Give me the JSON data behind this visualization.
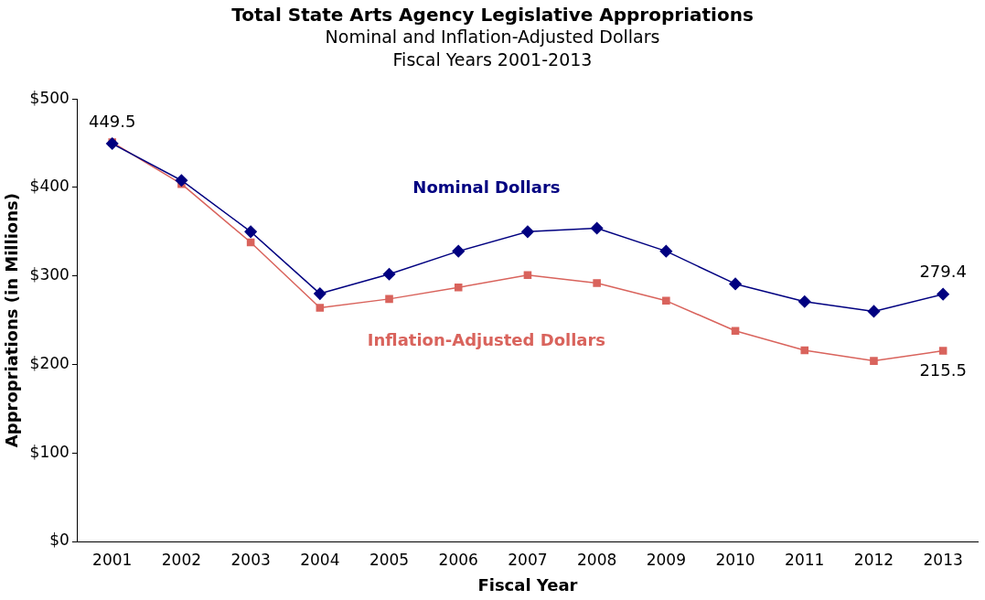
{
  "chart_data": {
    "type": "line",
    "title": "Total State Arts Agency Legislative Appropriations",
    "subtitle": "Nominal and Inflation-Adjusted Dollars\nFiscal Years 2001-2013",
    "xlabel": "Fiscal Year",
    "ylabel": "Appropriations (in Millions)",
    "categories": [
      "2001",
      "2002",
      "2003",
      "2004",
      "2005",
      "2006",
      "2007",
      "2008",
      "2009",
      "2010",
      "2011",
      "2012",
      "2013"
    ],
    "series": [
      {
        "name": "Nominal Dollars",
        "color": "#000080",
        "marker": "diamond",
        "values": [
          449.5,
          408,
          350,
          280,
          302,
          328,
          350,
          354,
          328,
          291,
          271,
          260,
          279.4
        ],
        "value_labels": [
          "449.5",
          null,
          null,
          null,
          null,
          null,
          null,
          null,
          null,
          null,
          null,
          null,
          "279.4"
        ]
      },
      {
        "name": "Inflation-Adjusted Dollars",
        "color": "#d9635c",
        "marker": "square",
        "values": [
          451,
          404,
          338,
          264,
          274,
          287,
          301,
          292,
          272,
          238,
          216,
          204,
          215.5
        ],
        "value_labels": [
          null,
          null,
          null,
          null,
          null,
          null,
          null,
          null,
          null,
          null,
          null,
          null,
          "215.5"
        ]
      }
    ],
    "ylim": [
      0,
      500
    ],
    "yticks": [
      {
        "value": 0,
        "label": "$0"
      },
      {
        "value": 100,
        "label": "$100"
      },
      {
        "value": 200,
        "label": "$200"
      },
      {
        "value": 300,
        "label": "$300"
      },
      {
        "value": 400,
        "label": "$400"
      },
      {
        "value": 500,
        "label": "$500"
      }
    ],
    "grid": false,
    "legend": false,
    "line_style": "solid"
  }
}
